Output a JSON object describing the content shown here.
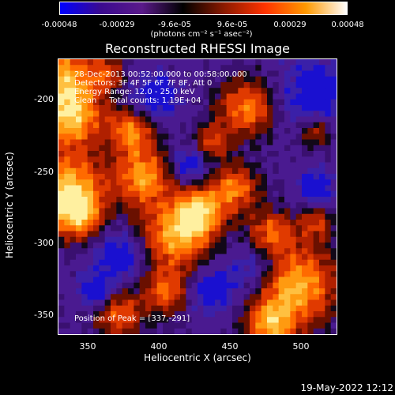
{
  "colorbar": {
    "ticks": [
      "-0.00048",
      "-0.00029",
      "-9.6e-05",
      "9.6e-05",
      "0.00029",
      "0.00048"
    ],
    "units": "(photons cm⁻² s⁻¹ asec⁻²)",
    "colors": [
      "#0000ff",
      "#3b0a8f",
      "#5a1a8a",
      "#000000",
      "#8b1a00",
      "#ff3300",
      "#ff9900",
      "#ffffff"
    ]
  },
  "title": "Reconstructed RHESSI Image",
  "info": {
    "time": "28-Dec-2013 00:52:00.000 to 00:58:00.000",
    "detectors": "Detectors: 3F 4F 5F 6F 7F 8F, Att 0",
    "energy": "Energy Range: 12.0 - 25.0 keV",
    "clean": "Clean     Total counts: 1.19E+04",
    "peak": "Position of Peak = [337,-291]"
  },
  "axes": {
    "xlabel": "Heliocentric X (arcsec)",
    "ylabel": "Heliocentric Y (arcsec)",
    "xticks": [
      "350",
      "400",
      "450",
      "500"
    ],
    "yticks": [
      "-200",
      "-250",
      "-300",
      "-350"
    ]
  },
  "footer": "19-May-2022 12:12"
}
